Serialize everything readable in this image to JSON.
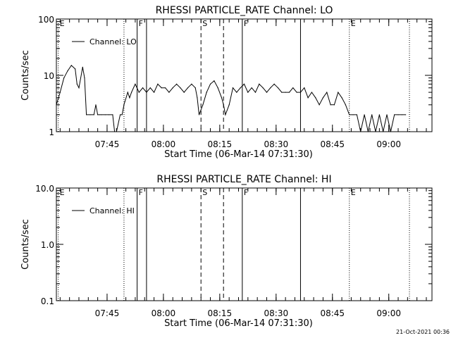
{
  "footer_date": "21-Oct-2021 00:36",
  "colors": {
    "background": "#ffffff",
    "ink": "#000000"
  },
  "chart_data": [
    {
      "type": "line",
      "title": "RHESSI PARTICLE_RATE Channel: LO",
      "xlabel": "Start Time (06-Mar-14 07:31:30)",
      "ylabel": "Counts/sec",
      "yscale": "log",
      "ylim": [
        1,
        100
      ],
      "yticks": [
        "1",
        "10",
        "100"
      ],
      "xlim_minutes": [
        0,
        100
      ],
      "xticks": [
        {
          "label": "07:45",
          "minutes": 13.5
        },
        {
          "label": "08:00",
          "minutes": 28.5
        },
        {
          "label": "08:15",
          "minutes": 43.5
        },
        {
          "label": "08:30",
          "minutes": 58.5
        },
        {
          "label": "08:45",
          "minutes": 73.5
        },
        {
          "label": "09:00",
          "minutes": 88.5
        }
      ],
      "legend": {
        "label": "Channel: LO",
        "position": "top-left"
      },
      "grid": false,
      "events": [
        {
          "label": "E",
          "minutes": 0.5,
          "style": "dotted"
        },
        {
          "label": "",
          "minutes": 18,
          "style": "dotted"
        },
        {
          "label": "F",
          "minutes": 21.5,
          "style": "solid"
        },
        {
          "label": "",
          "minutes": 24,
          "style": "solid"
        },
        {
          "label": "S",
          "minutes": 38.5,
          "style": "dashed"
        },
        {
          "label": "",
          "minutes": 44.5,
          "style": "dashed"
        },
        {
          "label": "F",
          "minutes": 49.5,
          "style": "solid"
        },
        {
          "label": "",
          "minutes": 65,
          "style": "solid"
        },
        {
          "label": "E",
          "minutes": 78,
          "style": "dotted"
        },
        {
          "label": "",
          "minutes": 94,
          "style": "dotted"
        }
      ],
      "series": [
        {
          "x": [
            0,
            1,
            2,
            3,
            4,
            5,
            5.5,
            6,
            7,
            7.5,
            8,
            9,
            10,
            10.5,
            11,
            11.5,
            12,
            13,
            14,
            15,
            15.5,
            16,
            17,
            17.5,
            18,
            19,
            19.5,
            20,
            21,
            22,
            23,
            24,
            25,
            26,
            27,
            28,
            29,
            30,
            31,
            32,
            33,
            34,
            35,
            36,
            37,
            37.5,
            38,
            39,
            40,
            41,
            42,
            43,
            44,
            44.5,
            45,
            46,
            47,
            48,
            49,
            50,
            51,
            52,
            53,
            54,
            55,
            56,
            57,
            58,
            59,
            60,
            61,
            62,
            63,
            64,
            65,
            66,
            67,
            68,
            69,
            70,
            71,
            72,
            73,
            74,
            75,
            76,
            77,
            78,
            79,
            80,
            81,
            82,
            83,
            84,
            85,
            86,
            87,
            88,
            89,
            90,
            91,
            92,
            93
          ],
          "y": [
            3,
            5,
            9,
            12,
            15,
            13,
            7,
            6,
            14,
            9,
            2,
            2,
            2,
            3,
            2,
            2,
            2,
            2,
            2,
            2,
            1,
            1,
            2,
            2,
            3,
            5,
            4,
            5,
            7,
            5,
            6,
            5,
            6,
            5,
            7,
            6,
            6,
            5,
            6,
            7,
            6,
            5,
            6,
            7,
            6,
            4,
            2,
            3,
            5,
            7,
            8,
            6,
            4,
            3,
            2,
            3,
            6,
            5,
            6,
            7,
            5,
            6,
            5,
            7,
            6,
            5,
            6,
            7,
            6,
            5,
            5,
            5,
            6,
            5,
            5,
            6,
            4,
            5,
            4,
            3,
            4,
            5,
            3,
            3,
            5,
            4,
            3,
            2,
            2,
            2,
            1,
            2,
            1,
            2,
            1,
            2,
            1,
            2,
            1,
            2,
            2,
            2,
            2
          ]
        }
      ]
    },
    {
      "type": "line",
      "title": "RHESSI PARTICLE_RATE Channel: HI",
      "xlabel": "Start Time (06-Mar-14 07:31:30)",
      "ylabel": "Counts/sec",
      "yscale": "log",
      "ylim": [
        0.1,
        10
      ],
      "yticks": [
        "0.1",
        "1.0",
        "10.0"
      ],
      "xlim_minutes": [
        0,
        100
      ],
      "xticks": [
        {
          "label": "07:45",
          "minutes": 13.5
        },
        {
          "label": "08:00",
          "minutes": 28.5
        },
        {
          "label": "08:15",
          "minutes": 43.5
        },
        {
          "label": "08:30",
          "minutes": 58.5
        },
        {
          "label": "08:45",
          "minutes": 73.5
        },
        {
          "label": "09:00",
          "minutes": 88.5
        }
      ],
      "legend": {
        "label": "Channel: HI",
        "position": "top-left"
      },
      "grid": false,
      "events": [
        {
          "label": "E",
          "minutes": 0.5,
          "style": "dotted"
        },
        {
          "label": "",
          "minutes": 18,
          "style": "dotted"
        },
        {
          "label": "F",
          "minutes": 21.5,
          "style": "solid"
        },
        {
          "label": "",
          "minutes": 24,
          "style": "solid"
        },
        {
          "label": "S",
          "minutes": 38.5,
          "style": "dashed"
        },
        {
          "label": "",
          "minutes": 44.5,
          "style": "dashed"
        },
        {
          "label": "F",
          "minutes": 49.5,
          "style": "solid"
        },
        {
          "label": "",
          "minutes": 65,
          "style": "solid"
        },
        {
          "label": "E",
          "minutes": 78,
          "style": "dotted"
        },
        {
          "label": "",
          "minutes": 94,
          "style": "dotted"
        }
      ],
      "series": []
    }
  ]
}
